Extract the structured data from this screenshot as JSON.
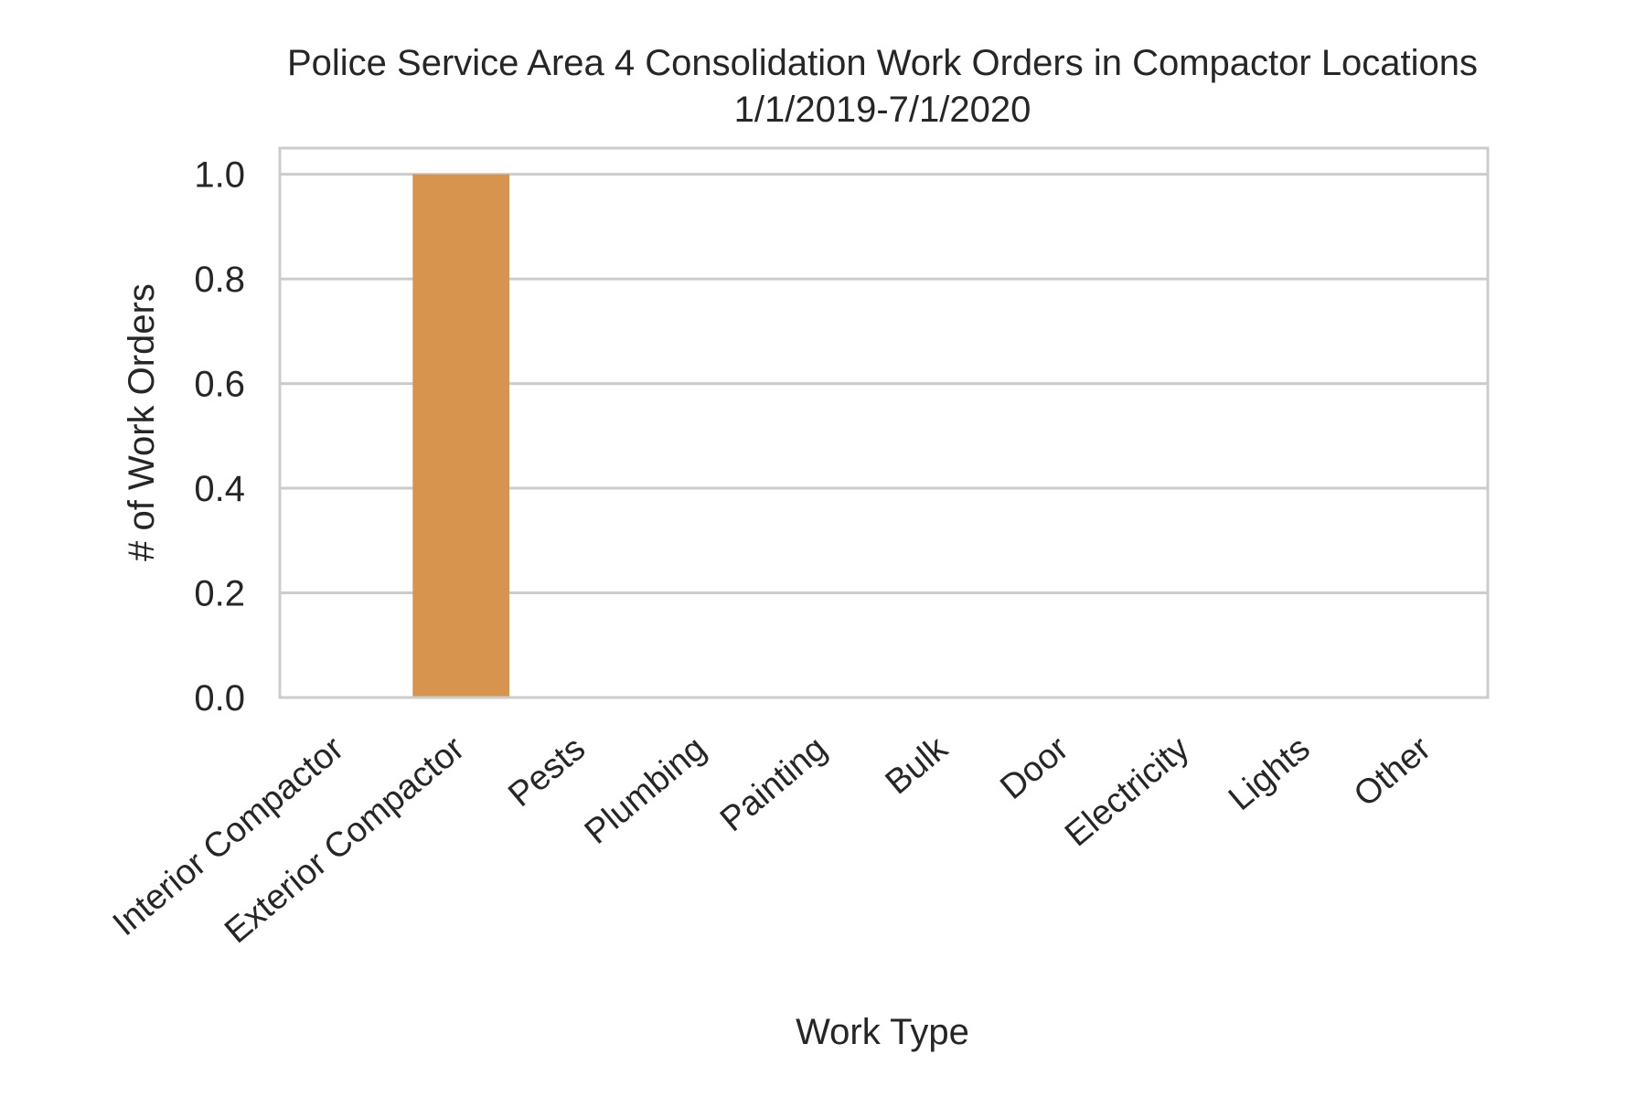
{
  "chart_data": {
    "type": "bar",
    "title": "Police Service Area 4 Consolidation Work Orders in Compactor Locations",
    "subtitle": "1/1/2019-7/1/2020",
    "xlabel": "Work Type",
    "ylabel": "# of Work Orders",
    "categories": [
      "Interior Compactor",
      "Exterior Compactor",
      "Pests",
      "Plumbing",
      "Painting",
      "Bulk",
      "Door",
      "Electricity",
      "Lights",
      "Other"
    ],
    "values": [
      0,
      1,
      0,
      0,
      0,
      0,
      0,
      0,
      0,
      0
    ],
    "ylim": [
      0,
      1.05
    ],
    "yticks": [
      0.0,
      0.2,
      0.4,
      0.6,
      0.8,
      1.0
    ],
    "ytick_labels": [
      "0.0",
      "0.2",
      "0.4",
      "0.6",
      "0.8",
      "1.0"
    ],
    "grid": true,
    "bar_colors": [
      "#3b75af",
      "#d6944e",
      "#529e3f",
      "#c13d3d",
      "#8b6daf",
      "#85594e",
      "#d67fbe",
      "#7f7f7f",
      "#a9aa35",
      "#2eb1be"
    ],
    "colors": {
      "grid": "#cccccc",
      "spine": "#cccccc",
      "text": "#262626",
      "background": "#ffffff"
    }
  }
}
